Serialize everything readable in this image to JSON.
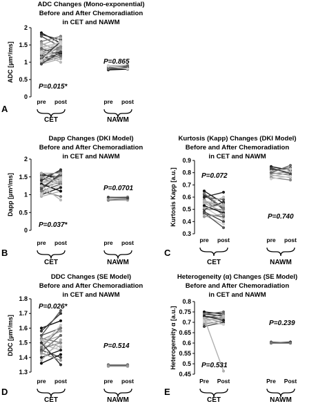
{
  "chart_data": [
    {
      "type": "line",
      "panel": "A",
      "title_lines": [
        "ADC Changes (Mono-exponential)",
        "Before and After Chemoradiation",
        "in CET and NAWM"
      ],
      "ylabel": "ADC [µm²/ms]",
      "ylim": [
        0,
        2
      ],
      "yticks": [
        "0",
        "0.5",
        "1",
        "1.5",
        "2"
      ],
      "xcategories": [
        "pre",
        "post",
        "pre",
        "post"
      ],
      "groups": [
        "CET",
        "NAWM"
      ],
      "pvalues": {
        "CET": "P=0.015*",
        "NAWM": "P=0.865"
      },
      "cet_pairs": [
        [
          1.85,
          1.55
        ],
        [
          1.8,
          1.65
        ],
        [
          1.75,
          1.45
        ],
        [
          1.6,
          1.75
        ],
        [
          1.55,
          1.3
        ],
        [
          1.5,
          1.7
        ],
        [
          1.45,
          1.55
        ],
        [
          1.4,
          1.6
        ],
        [
          1.35,
          1.5
        ],
        [
          1.3,
          1.45
        ],
        [
          1.25,
          1.4
        ],
        [
          1.2,
          1.5
        ],
        [
          1.2,
          1.3
        ],
        [
          1.15,
          1.35
        ],
        [
          1.1,
          1.25
        ],
        [
          1.1,
          1.6
        ],
        [
          1.05,
          1.2
        ],
        [
          1.0,
          1.15
        ],
        [
          1.0,
          1.4
        ],
        [
          0.95,
          1.1
        ],
        [
          1.25,
          1.0
        ],
        [
          1.3,
          1.6
        ],
        [
          1.15,
          1.45
        ],
        [
          0.95,
          1.3
        ],
        [
          1.4,
          1.2
        ],
        [
          1.05,
          1.55
        ]
      ],
      "nawm_pairs": [
        [
          0.78,
          0.8
        ],
        [
          0.8,
          0.82
        ],
        [
          0.82,
          0.84
        ],
        [
          0.84,
          0.86
        ],
        [
          0.86,
          0.88
        ],
        [
          0.88,
          0.86
        ],
        [
          0.9,
          0.92
        ],
        [
          0.85,
          0.83
        ],
        [
          0.83,
          0.87
        ],
        [
          0.87,
          0.85
        ],
        [
          0.81,
          0.9
        ],
        [
          0.89,
          0.81
        ]
      ]
    },
    {
      "type": "line",
      "panel": "B",
      "title_lines": [
        "Dapp Changes (DKI Model)",
        "Before and After Chemoradiation",
        "in CET and NAWM"
      ],
      "ylabel": "Dapp [µm²/ms]",
      "ylim": [
        0,
        2
      ],
      "yticks": [
        "0",
        "0.5",
        "1",
        "1.5",
        "2"
      ],
      "xcategories": [
        "pre",
        "post",
        "pre",
        "post"
      ],
      "groups": [
        "CET",
        "NAWM"
      ],
      "pvalues": {
        "CET": "P=0.037*",
        "NAWM": "P=0.0701"
      },
      "cet_pairs": [
        [
          1.6,
          1.4
        ],
        [
          1.55,
          1.5
        ],
        [
          1.5,
          1.65
        ],
        [
          1.45,
          1.3
        ],
        [
          1.4,
          1.55
        ],
        [
          1.35,
          1.45
        ],
        [
          1.3,
          1.5
        ],
        [
          1.25,
          1.4
        ],
        [
          1.2,
          1.35
        ],
        [
          1.15,
          1.6
        ],
        [
          1.1,
          1.3
        ],
        [
          1.05,
          1.25
        ],
        [
          1.0,
          1.2
        ],
        [
          0.95,
          1.1
        ],
        [
          1.3,
          1.1
        ],
        [
          1.4,
          1.7
        ],
        [
          1.2,
          1.55
        ],
        [
          1.1,
          0.95
        ],
        [
          1.5,
          1.35
        ],
        [
          1.6,
          1.6
        ],
        [
          1.25,
          0.85
        ],
        [
          1.0,
          1.45
        ]
      ],
      "nawm_pairs": [
        [
          0.85,
          0.88
        ],
        [
          0.87,
          0.9
        ],
        [
          0.89,
          0.92
        ],
        [
          0.9,
          0.86
        ],
        [
          0.92,
          0.94
        ],
        [
          0.88,
          0.9
        ],
        [
          0.86,
          0.84
        ],
        [
          0.91,
          0.89
        ],
        [
          0.84,
          0.87
        ],
        [
          0.93,
          0.91
        ]
      ]
    },
    {
      "type": "line",
      "panel": "C",
      "title_lines": [
        "Kurtosis (Kapp) Changes (DKI Model)",
        "Before and After Chemoradiation",
        "in CET and NAWM"
      ],
      "ylabel": "Kurtosis Kapp [a.u.]",
      "ylim": [
        0.3,
        0.9
      ],
      "yticks": [
        "0.3",
        "0.4",
        "0.5",
        "0.6",
        "0.7",
        "0.8",
        "0.9"
      ],
      "xcategories": [
        "pre",
        "post",
        "pre",
        "post"
      ],
      "groups": [
        "CET",
        "NAWM"
      ],
      "pvalues": {
        "CET": "P=0.072",
        "NAWM": "P=0.740"
      },
      "cet_pairs": [
        [
          0.65,
          0.55
        ],
        [
          0.62,
          0.5
        ],
        [
          0.6,
          0.58
        ],
        [
          0.58,
          0.45
        ],
        [
          0.56,
          0.52
        ],
        [
          0.55,
          0.48
        ],
        [
          0.54,
          0.6
        ],
        [
          0.52,
          0.42
        ],
        [
          0.5,
          0.5
        ],
        [
          0.48,
          0.4
        ],
        [
          0.46,
          0.44
        ],
        [
          0.45,
          0.38
        ],
        [
          0.6,
          0.64
        ],
        [
          0.57,
          0.53
        ],
        [
          0.53,
          0.47
        ],
        [
          0.5,
          0.56
        ],
        [
          0.47,
          0.35
        ],
        [
          0.63,
          0.51
        ],
        [
          0.44,
          0.46
        ],
        [
          0.51,
          0.54
        ]
      ],
      "nawm_pairs": [
        [
          0.85,
          0.82
        ],
        [
          0.83,
          0.8
        ],
        [
          0.82,
          0.84
        ],
        [
          0.8,
          0.78
        ],
        [
          0.79,
          0.81
        ],
        [
          0.78,
          0.76
        ],
        [
          0.77,
          0.8
        ],
        [
          0.81,
          0.83
        ],
        [
          0.76,
          0.74
        ],
        [
          0.84,
          0.79
        ],
        [
          0.8,
          0.86
        ],
        [
          0.75,
          0.77
        ]
      ]
    },
    {
      "type": "line",
      "panel": "D",
      "title_lines": [
        "DDC Changes (SE Model)",
        "Before and After Chemoradiation",
        "in CET and NAWM"
      ],
      "ylabel": "DDC [µm²/ms]",
      "ylim": [
        1.3,
        1.8
      ],
      "yticks": [
        "1.3",
        "1.4",
        "1.5",
        "1.6",
        "1.7",
        "1.8"
      ],
      "xcategories": [
        "pre",
        "post",
        "pre",
        "post"
      ],
      "groups": [
        "CET",
        "NAWM"
      ],
      "pvalues": {
        "CET": "P=0.026*",
        "NAWM": "P=0.514"
      },
      "cet_pairs": [
        [
          1.6,
          1.65
        ],
        [
          1.58,
          1.7
        ],
        [
          1.55,
          1.6
        ],
        [
          1.53,
          1.5
        ],
        [
          1.52,
          1.58
        ],
        [
          1.5,
          1.55
        ],
        [
          1.49,
          1.45
        ],
        [
          1.48,
          1.62
        ],
        [
          1.46,
          1.5
        ],
        [
          1.45,
          1.4
        ],
        [
          1.44,
          1.55
        ],
        [
          1.42,
          1.48
        ],
        [
          1.4,
          1.45
        ],
        [
          1.38,
          1.52
        ],
        [
          1.36,
          1.42
        ],
        [
          1.5,
          1.35
        ],
        [
          1.55,
          1.72
        ],
        [
          1.47,
          1.6
        ],
        [
          1.43,
          1.38
        ],
        [
          1.52,
          1.47
        ]
      ],
      "nawm_pairs": [
        [
          1.34,
          1.35
        ],
        [
          1.35,
          1.34
        ],
        [
          1.345,
          1.345
        ],
        [
          1.35,
          1.35
        ],
        [
          1.34,
          1.34
        ]
      ]
    },
    {
      "type": "line",
      "panel": "E",
      "title_lines": [
        "Heterogeneity (α) Changes (SE Model)",
        "Before and After Chemoradiation",
        "in CET and NAWM"
      ],
      "ylabel": "Heterogeneity α [a.u.]",
      "ylim": [
        0.45,
        0.8
      ],
      "yticks": [
        "0.45",
        "0.5",
        "0.55",
        "0.6",
        "0.65",
        "0.7",
        "0.75",
        "0.8"
      ],
      "xcategories": [
        "Pre",
        "Post",
        "Pre",
        "Post"
      ],
      "groups": [
        "CET",
        "NAWM"
      ],
      "pvalues": {
        "CET": "P=0.531",
        "NAWM": "P=0.239"
      },
      "cet_pairs": [
        [
          0.75,
          0.74
        ],
        [
          0.74,
          0.73
        ],
        [
          0.73,
          0.72
        ],
        [
          0.72,
          0.74
        ],
        [
          0.72,
          0.7
        ],
        [
          0.71,
          0.72
        ],
        [
          0.7,
          0.73
        ],
        [
          0.7,
          0.69
        ],
        [
          0.69,
          0.71
        ],
        [
          0.68,
          0.7
        ],
        [
          0.74,
          0.75
        ],
        [
          0.71,
          0.69
        ],
        [
          0.73,
          0.71
        ],
        [
          0.72,
          0.465
        ]
      ],
      "nawm_pairs": [
        [
          0.6,
          0.6
        ],
        [
          0.6,
          0.605
        ],
        [
          0.605,
          0.6
        ],
        [
          0.6,
          0.6
        ]
      ]
    }
  ]
}
